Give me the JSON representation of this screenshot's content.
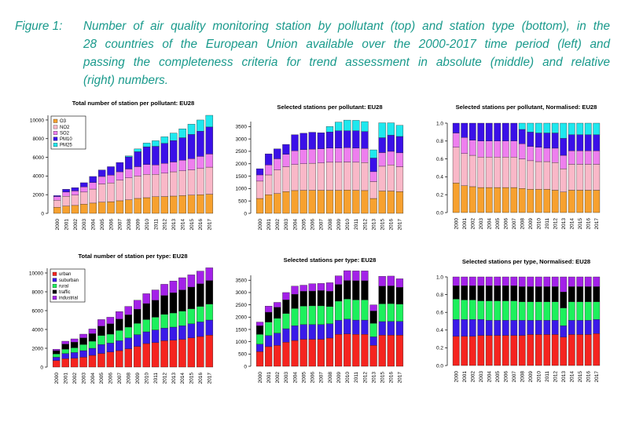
{
  "caption": {
    "label": "Figure 1:",
    "lines": [
      "Number of air quality monitoring station by pollutant (top) and station type (bottom), in the",
      "28 countries of the European Union available over the 2000-2017 time period (left) and",
      "passing the completeness criteria for trend assessment in absolute (middle) and relative",
      "(right) numbers."
    ]
  },
  "colors": {
    "O3": "#f7a12f",
    "NO2": "#f9b8c8",
    "SO2": "#ee7fee",
    "PM10": "#3a10e8",
    "PM25": "#1ee8ee",
    "urban": "#f5241f",
    "suburban": "#3a1ae8",
    "rural": "#1df05c",
    "traffic": "#000000",
    "industrial": "#a321e8"
  },
  "chart_data": [
    {
      "type": "bar",
      "stacked": true,
      "title": "Total number of station per pollutant: EU28",
      "categories": [
        "2000",
        "2001",
        "2002",
        "2003",
        "2004",
        "2005",
        "2006",
        "2007",
        "2008",
        "2009",
        "2010",
        "2011",
        "2012",
        "2013",
        "2014",
        "2015",
        "2016",
        "2017"
      ],
      "ylim": [
        0,
        10500
      ],
      "yticks": [
        "0",
        "2000",
        "4000",
        "6000",
        "8000",
        "10000"
      ],
      "legend": "top-left",
      "series": [
        {
          "name": "O3",
          "values": [
            650,
            780,
            850,
            980,
            1100,
            1200,
            1250,
            1350,
            1450,
            1600,
            1680,
            1780,
            1800,
            1850,
            1900,
            1950,
            2000,
            2050
          ]
        },
        {
          "name": "NO2",
          "values": [
            750,
            1050,
            1100,
            1300,
            1500,
            1950,
            2000,
            2200,
            2350,
            2400,
            2500,
            2400,
            2500,
            2600,
            2650,
            2700,
            2800,
            2900
          ]
        },
        {
          "name": "SO2",
          "values": [
            400,
            450,
            450,
            550,
            700,
            800,
            850,
            900,
            950,
            1000,
            1050,
            1000,
            1050,
            1050,
            1150,
            1200,
            1300,
            1400
          ]
        },
        {
          "name": "PM10",
          "values": [
            100,
            300,
            350,
            450,
            650,
            700,
            900,
            1000,
            1300,
            1600,
            1900,
            2000,
            2150,
            2300,
            2400,
            2600,
            2700,
            2900
          ]
        },
        {
          "name": "PM25",
          "values": [
            0,
            0,
            0,
            0,
            0,
            0,
            0,
            0,
            100,
            300,
            400,
            600,
            700,
            800,
            950,
            1100,
            1200,
            1250
          ]
        }
      ]
    },
    {
      "type": "bar",
      "stacked": true,
      "title": "Selected stations per pollutant: EU28",
      "categories": [
        "2000",
        "2001",
        "2002",
        "2003",
        "2004",
        "2005",
        "2006",
        "2007",
        "2008",
        "2009",
        "2010",
        "2011",
        "2012",
        "2013",
        "2015",
        "2016",
        "2017"
      ],
      "ylim": [
        0,
        3700
      ],
      "yticks": [
        "0",
        "500",
        "1000",
        "1500",
        "2000",
        "2500",
        "3000",
        "3500"
      ],
      "series": [
        {
          "name": "O3",
          "values": [
            600,
            750,
            800,
            880,
            920,
            930,
            930,
            930,
            930,
            930,
            940,
            930,
            920,
            600,
            900,
            900,
            880
          ]
        },
        {
          "name": "NO2",
          "values": [
            700,
            800,
            950,
            1000,
            1050,
            1070,
            1090,
            1100,
            1130,
            1130,
            1130,
            1130,
            1130,
            680,
            1000,
            1050,
            1000
          ]
        },
        {
          "name": "SO2",
          "values": [
            250,
            400,
            450,
            500,
            550,
            570,
            570,
            570,
            570,
            570,
            580,
            570,
            570,
            400,
            550,
            550,
            560
          ]
        },
        {
          "name": "PM10",
          "values": [
            250,
            450,
            400,
            400,
            650,
            660,
            680,
            650,
            650,
            700,
            680,
            700,
            680,
            550,
            600,
            650,
            660
          ]
        },
        {
          "name": "PM25",
          "values": [
            0,
            0,
            0,
            0,
            0,
            0,
            0,
            0,
            220,
            350,
            430,
            420,
            400,
            330,
            600,
            500,
            450
          ]
        }
      ]
    },
    {
      "type": "bar",
      "stacked": true,
      "title": "Selected stations per pollutant, Normalised: EU28",
      "categories": [
        "2000",
        "2001",
        "2002",
        "2003",
        "2004",
        "2005",
        "2006",
        "2007",
        "2008",
        "2009",
        "2010",
        "2011",
        "2012",
        "2013",
        "2014",
        "2015",
        "2016",
        "2017"
      ],
      "ylim": [
        0,
        1.0
      ],
      "yticks": [
        "0.0",
        "0.2",
        "0.4",
        "0.6",
        "0.8",
        "1.0"
      ],
      "series": [
        {
          "name": "O3",
          "values": [
            0.33,
            0.3,
            0.29,
            0.28,
            0.28,
            0.28,
            0.28,
            0.28,
            0.27,
            0.26,
            0.26,
            0.26,
            0.25,
            0.23,
            0.25,
            0.25,
            0.25,
            0.25
          ]
        },
        {
          "name": "NO2",
          "values": [
            0.4,
            0.36,
            0.35,
            0.34,
            0.34,
            0.34,
            0.34,
            0.34,
            0.33,
            0.32,
            0.31,
            0.31,
            0.31,
            0.26,
            0.29,
            0.29,
            0.29,
            0.29
          ]
        },
        {
          "name": "SO2",
          "values": [
            0.16,
            0.18,
            0.17,
            0.18,
            0.18,
            0.18,
            0.18,
            0.18,
            0.17,
            0.16,
            0.16,
            0.15,
            0.16,
            0.15,
            0.15,
            0.15,
            0.15,
            0.15
          ]
        },
        {
          "name": "PM10",
          "values": [
            0.11,
            0.16,
            0.19,
            0.2,
            0.2,
            0.2,
            0.2,
            0.2,
            0.16,
            0.16,
            0.16,
            0.17,
            0.17,
            0.19,
            0.18,
            0.18,
            0.18,
            0.18
          ]
        },
        {
          "name": "PM25",
          "values": [
            0,
            0,
            0,
            0,
            0,
            0,
            0,
            0,
            0.07,
            0.1,
            0.11,
            0.11,
            0.11,
            0.17,
            0.13,
            0.13,
            0.13,
            0.13
          ]
        }
      ]
    },
    {
      "type": "bar",
      "stacked": true,
      "title": "Total number of station per type: EU28",
      "categories": [
        "2000",
        "2001",
        "2002",
        "2003",
        "2004",
        "2005",
        "2006",
        "2007",
        "2008",
        "2009",
        "2010",
        "2011",
        "2012",
        "2013",
        "2014",
        "2015",
        "2016",
        "2017"
      ],
      "ylim": [
        0,
        10500
      ],
      "yticks": [
        "0",
        "2000",
        "4000",
        "6000",
        "8000",
        "10000"
      ],
      "legend": "top-left",
      "series": [
        {
          "name": "urban",
          "values": [
            700,
            900,
            950,
            1050,
            1250,
            1450,
            1600,
            1750,
            1950,
            2200,
            2500,
            2600,
            2800,
            2850,
            2950,
            3100,
            3250,
            3400
          ]
        },
        {
          "name": "suburban",
          "values": [
            350,
            550,
            600,
            700,
            750,
            950,
            950,
            1050,
            1150,
            1250,
            1250,
            1350,
            1350,
            1400,
            1450,
            1500,
            1550,
            1600
          ]
        },
        {
          "name": "rural",
          "values": [
            350,
            450,
            500,
            650,
            750,
            950,
            950,
            1100,
            1150,
            1200,
            1300,
            1350,
            1450,
            1500,
            1550,
            1600,
            1650,
            1700
          ]
        },
        {
          "name": "traffic",
          "values": [
            350,
            550,
            600,
            700,
            800,
            1000,
            1100,
            1200,
            1300,
            1500,
            1700,
            1800,
            2000,
            2150,
            2250,
            2300,
            2400,
            2500
          ]
        },
        {
          "name": "industrial",
          "values": [
            150,
            300,
            350,
            400,
            500,
            700,
            700,
            800,
            900,
            950,
            1050,
            1100,
            1200,
            1250,
            1300,
            1300,
            1350,
            1350
          ]
        }
      ]
    },
    {
      "type": "bar",
      "stacked": true,
      "title": "Selected stations per type: EU28",
      "categories": [
        "2000",
        "2001",
        "2002",
        "2003",
        "2004",
        "2005",
        "2006",
        "2007",
        "2008",
        "2009",
        "2010",
        "2011",
        "2012",
        "2013",
        "2015",
        "2016",
        "2017"
      ],
      "ylim": [
        0,
        3700
      ],
      "yticks": [
        "0",
        "500",
        "1000",
        "1500",
        "2000",
        "2500",
        "3000",
        "3500"
      ],
      "series": [
        {
          "name": "urban",
          "values": [
            600,
            800,
            850,
            980,
            1050,
            1100,
            1100,
            1100,
            1150,
            1300,
            1320,
            1300,
            1300,
            850,
            1270,
            1270,
            1270
          ]
        },
        {
          "name": "suburban",
          "values": [
            300,
            450,
            500,
            550,
            600,
            600,
            600,
            600,
            580,
            570,
            600,
            580,
            580,
            350,
            550,
            560,
            560
          ]
        },
        {
          "name": "rural",
          "values": [
            400,
            550,
            600,
            620,
            700,
            750,
            760,
            760,
            700,
            780,
            820,
            820,
            820,
            550,
            720,
            720,
            700
          ]
        },
        {
          "name": "traffic",
          "values": [
            350,
            400,
            450,
            550,
            580,
            600,
            600,
            620,
            620,
            680,
            750,
            780,
            780,
            500,
            720,
            720,
            680
          ]
        },
        {
          "name": "industrial",
          "values": [
            150,
            250,
            200,
            300,
            330,
            250,
            300,
            290,
            350,
            350,
            400,
            400,
            400,
            250,
            400,
            400,
            350
          ]
        }
      ]
    },
    {
      "type": "bar",
      "stacked": true,
      "title": "Selected stations per type, Normalised: EU28",
      "categories": [
        "2000",
        "2001",
        "2002",
        "2003",
        "2004",
        "2005",
        "2006",
        "2007",
        "2008",
        "2009",
        "2010",
        "2011",
        "2012",
        "2013",
        "2014",
        "2015",
        "2016",
        "2017"
      ],
      "ylim": [
        0,
        1.0
      ],
      "yticks": [
        "0.0",
        "0.2",
        "0.4",
        "0.6",
        "0.8",
        "1.0"
      ],
      "series": [
        {
          "name": "urban",
          "values": [
            0.33,
            0.33,
            0.33,
            0.34,
            0.34,
            0.34,
            0.34,
            0.34,
            0.34,
            0.35,
            0.35,
            0.35,
            0.35,
            0.32,
            0.35,
            0.35,
            0.35,
            0.36
          ]
        },
        {
          "name": "suburban",
          "values": [
            0.19,
            0.19,
            0.19,
            0.18,
            0.17,
            0.17,
            0.17,
            0.17,
            0.17,
            0.16,
            0.16,
            0.16,
            0.16,
            0.13,
            0.16,
            0.16,
            0.16,
            0.16
          ]
        },
        {
          "name": "rural",
          "values": [
            0.23,
            0.22,
            0.22,
            0.21,
            0.22,
            0.22,
            0.22,
            0.22,
            0.21,
            0.21,
            0.21,
            0.21,
            0.21,
            0.2,
            0.21,
            0.21,
            0.21,
            0.2
          ]
        },
        {
          "name": "traffic",
          "values": [
            0.15,
            0.16,
            0.16,
            0.17,
            0.17,
            0.17,
            0.17,
            0.17,
            0.17,
            0.17,
            0.17,
            0.17,
            0.17,
            0.18,
            0.17,
            0.17,
            0.17,
            0.17
          ]
        },
        {
          "name": "industrial",
          "values": [
            0.1,
            0.1,
            0.1,
            0.1,
            0.1,
            0.1,
            0.1,
            0.1,
            0.11,
            0.11,
            0.11,
            0.11,
            0.11,
            0.17,
            0.11,
            0.11,
            0.11,
            0.11
          ]
        }
      ]
    }
  ]
}
